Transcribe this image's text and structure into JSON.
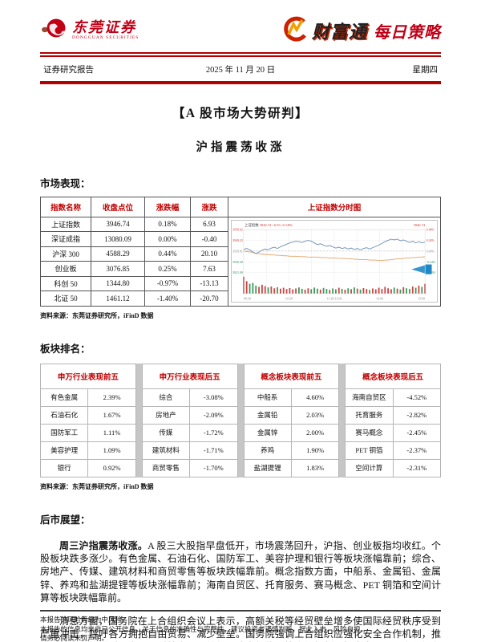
{
  "header": {
    "brand_name": "东莞证券",
    "brand_name_en": "DONGGUAN  SECURITIES",
    "product_name": "财富通",
    "series_name": "每日策略",
    "doc_type": "证券研究报告",
    "date": "2025 年 11 月 20 日",
    "weekday": "星期四"
  },
  "title": "【A 股市场大势研判】",
  "subtitle": "沪指震荡收涨",
  "sections": {
    "market_label": "市场表现：",
    "rank_label": "板块排名：",
    "outlook_label": "后市展望：",
    "source_note": "资料来源：东莞证券研究所，iFinD 数据"
  },
  "index_table": {
    "headers": [
      "指数名称",
      "收盘点位",
      "涨跌幅",
      "涨跌"
    ],
    "chart_header": "上证指数分时图",
    "rows": [
      [
        "上证指数",
        "3946.74",
        "0.18%",
        "6.93"
      ],
      [
        "深证成指",
        "13080.09",
        "0.00%",
        "-0.40"
      ],
      [
        "沪深 300",
        "4588.29",
        "0.44%",
        "20.10"
      ],
      [
        "创业板",
        "3076.85",
        "0.25%",
        "7.63"
      ],
      [
        "科创 50",
        "1344.80",
        "-0.97%",
        "-13.13"
      ],
      [
        "北证 50",
        "1461.12",
        "-1.40%",
        "-20.70"
      ]
    ]
  },
  "sector_tables": [
    {
      "title": "申万行业表现前五",
      "rows": [
        [
          "有色金属",
          "2.39%"
        ],
        [
          "石油石化",
          "1.67%"
        ],
        [
          "国防军工",
          "1.11%"
        ],
        [
          "美容护理",
          "1.09%"
        ],
        [
          "银行",
          "0.92%"
        ]
      ]
    },
    {
      "title": "申万行业表现后五",
      "rows": [
        [
          "综合",
          "-3.08%"
        ],
        [
          "房地产",
          "-2.09%"
        ],
        [
          "传媒",
          "-1.72%"
        ],
        [
          "建筑材料",
          "-1.71%"
        ],
        [
          "商贸零售",
          "-1.70%"
        ]
      ]
    },
    {
      "title": "概念板块表现前五",
      "rows": [
        [
          "中船系",
          "4.60%"
        ],
        [
          "金属铅",
          "2.03%"
        ],
        [
          "金属锌",
          "2.00%"
        ],
        [
          "养鸡",
          "1.90%"
        ],
        [
          "盐湖提锂",
          "1.83%"
        ]
      ]
    },
    {
      "title": "概念板块表现后五",
      "rows": [
        [
          "海南自贸区",
          "-4.52%"
        ],
        [
          "托育服务",
          "-2.82%"
        ],
        [
          "赛马概念",
          "-2.45%"
        ],
        [
          "PET 铜箔",
          "-2.37%"
        ],
        [
          "空间计算",
          "-2.31%"
        ]
      ]
    }
  ],
  "outlook": {
    "p1_lead": "周三沪指震荡收涨。",
    "p1_rest": "A 股三大股指早盘低开，市场震荡回升，沪指、创业板指均收红。个股板块跌多涨少。有色金属、石油石化、国防军工、美容护理和银行等板块涨幅靠前；综合、房地产、传媒、建筑材料和商贸零售等板块跌幅靠前。概念指数方面，中船系、金属铅、金属锌、养鸡和盐湖提锂等板块涨幅靠前；海南自贸区、托育服务、赛马概念、PET 铜箔和空间计算等板块跌幅靠前。",
    "p2": "消息方面，国务院在上合组织会议上表示，高额关税等经贸壁垒增多使国际经贸秩序受到严重冲击，呼吁各方拥抱自由贸易、减少壁垒。国务院强调上合组织应强化安全合作机制，推动科技交流，反对人为阻碍科技发展，并倡议建立新能源等合作机制，扩大中国—上合组织在金融、科技等领域的协作平台。工信部办公厅印发《高标准数字园区建设指"
  },
  "footer": {
    "line1": "本报告的风险等级为中风险。",
    "line2": "本报告的信息均来自已公开信息，关于信息的准确性与完整性，建议投资者谨慎判断，据此入市，风险自担。",
    "line3": "请务必阅读末页声明。"
  },
  "chart_data": {
    "type": "line",
    "title": "上证指数分时图",
    "info_segments": [
      [
        "上证指数",
        "#444444"
      ],
      [
        "3946.74",
        "#cc3333"
      ],
      [
        "+6.93",
        "#cc3333"
      ],
      [
        "+0.18%",
        "#cc3333"
      ]
    ],
    "corner_value": "3946.74",
    "left_axis": [
      "3958.62",
      "3949.22",
      "3939.81",
      "3930.40",
      "3921.00"
    ],
    "right_axis": [
      "0.48%",
      "0.24%",
      "0.00%",
      "-0.24%",
      "-0.48%"
    ],
    "axis_colors": [
      "#cc3333",
      "#cc3333",
      "#888888",
      "#2e8b57",
      "#2e8b57"
    ],
    "time_labels": [
      "09:30",
      "10:30",
      "11:30/13:00",
      "14:00",
      "15:00"
    ],
    "colors": {
      "price": "#6b8fb5",
      "avg": "#e2a266",
      "up": "#cc4444",
      "down": "#3a9a5c",
      "grid": "#e8e8e8",
      "mid": "#aaaaaa",
      "marker": "#1e88c7"
    },
    "price_rel": [
      0.46,
      0.44,
      0.47,
      0.52,
      0.56,
      0.52,
      0.48,
      0.45,
      0.47,
      0.43,
      0.41,
      0.44,
      0.4,
      0.37,
      0.34,
      0.31,
      0.29,
      0.27,
      0.28,
      0.3,
      0.27,
      0.25,
      0.27,
      0.31,
      0.35,
      0.33,
      0.36,
      0.39,
      0.37,
      0.4,
      0.43,
      0.41,
      0.44,
      0.42,
      0.45,
      0.43,
      0.46,
      0.44,
      0.47,
      0.44,
      0.42,
      0.45,
      0.42,
      0.39,
      0.36,
      0.32,
      0.28,
      0.25,
      0.22,
      0.24,
      0.22,
      0.26,
      0.24,
      0.27,
      0.3,
      0.27,
      0.31,
      0.28,
      0.31,
      0.29
    ],
    "avg_rel": [
      0.5,
      0.51,
      0.52,
      0.53,
      0.55,
      0.56,
      0.57,
      0.58,
      0.58,
      0.59,
      0.59,
      0.6,
      0.6,
      0.61,
      0.61,
      0.62,
      0.62,
      0.62,
      0.63,
      0.63,
      0.63,
      0.64,
      0.64,
      0.64,
      0.64,
      0.65,
      0.65,
      0.65,
      0.66,
      0.66,
      0.66,
      0.67,
      0.67,
      0.67,
      0.68,
      0.68,
      0.69,
      0.69,
      0.7,
      0.7,
      0.7,
      0.71,
      0.71,
      0.71,
      0.72,
      0.72,
      0.71,
      0.71,
      0.7,
      0.69,
      0.68,
      0.68,
      0.67,
      0.66,
      0.66,
      0.65,
      0.65,
      0.64,
      0.64,
      0.63
    ],
    "volume_rel": [
      0.95,
      0.7,
      0.55,
      0.6,
      0.45,
      0.38,
      0.5,
      0.42,
      0.35,
      0.4,
      0.3,
      0.36,
      0.28,
      0.33,
      0.26,
      0.31,
      0.24,
      0.29,
      0.35,
      0.27,
      0.22,
      0.3,
      0.25,
      0.34,
      0.28,
      0.23,
      0.32,
      0.26,
      0.21,
      0.29,
      0.24,
      0.33,
      0.27,
      0.22,
      0.3,
      0.25,
      0.35,
      0.28,
      0.23,
      0.31,
      0.26,
      0.21,
      0.29,
      0.24,
      0.33,
      0.27,
      0.38,
      0.3,
      0.25,
      0.34,
      0.28,
      0.23,
      0.36,
      0.3,
      0.26,
      0.4,
      0.33,
      0.45,
      0.38,
      0.55
    ]
  }
}
